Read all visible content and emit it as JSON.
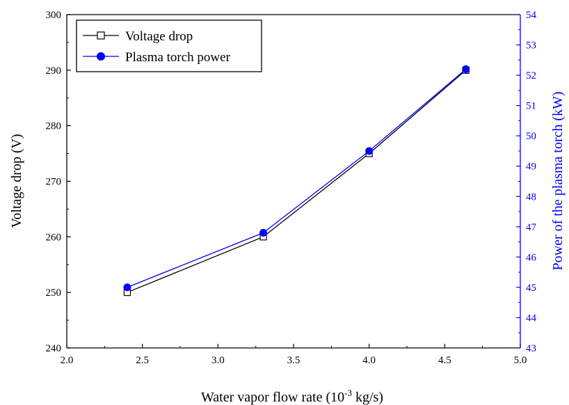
{
  "colors": {
    "left_axis": "#000000",
    "right_axis": "#0000ff",
    "voltage_series": "#000000",
    "power_series": "#0000ff"
  },
  "chart_data": {
    "type": "line",
    "xlabel": {
      "prefix": "Water vapor flow rate (10",
      "superscript": "-3",
      "suffix": " kg/s)"
    },
    "ylabel_left": "Voltage drop (V)",
    "ylabel_right": "Power of the plasma torch (kW)",
    "xlim": [
      2.0,
      5.0
    ],
    "ylim_left": [
      240,
      300
    ],
    "ylim_right": [
      43,
      54
    ],
    "xticks": [
      "2.0",
      "2.5",
      "3.0",
      "3.5",
      "4.0",
      "4.5",
      "5.0"
    ],
    "yticks_left": [
      "240",
      "250",
      "260",
      "270",
      "280",
      "290",
      "300"
    ],
    "yticks_right": [
      "43",
      "44",
      "45",
      "46",
      "47",
      "48",
      "49",
      "50",
      "51",
      "52",
      "53",
      "54"
    ],
    "legend_position": "top-left",
    "grid": false,
    "series": [
      {
        "name": "Voltage drop",
        "axis": "left",
        "marker": "open-square",
        "color": "#000000",
        "x": [
          2.4,
          3.3,
          4.0,
          4.64
        ],
        "y": [
          250,
          260,
          275,
          290
        ]
      },
      {
        "name": "Plasma torch power",
        "axis": "right",
        "marker": "filled-circle",
        "color": "#0000ff",
        "x": [
          2.4,
          3.3,
          4.0,
          4.64
        ],
        "y": [
          45.0,
          46.8,
          49.5,
          52.2
        ]
      }
    ]
  }
}
